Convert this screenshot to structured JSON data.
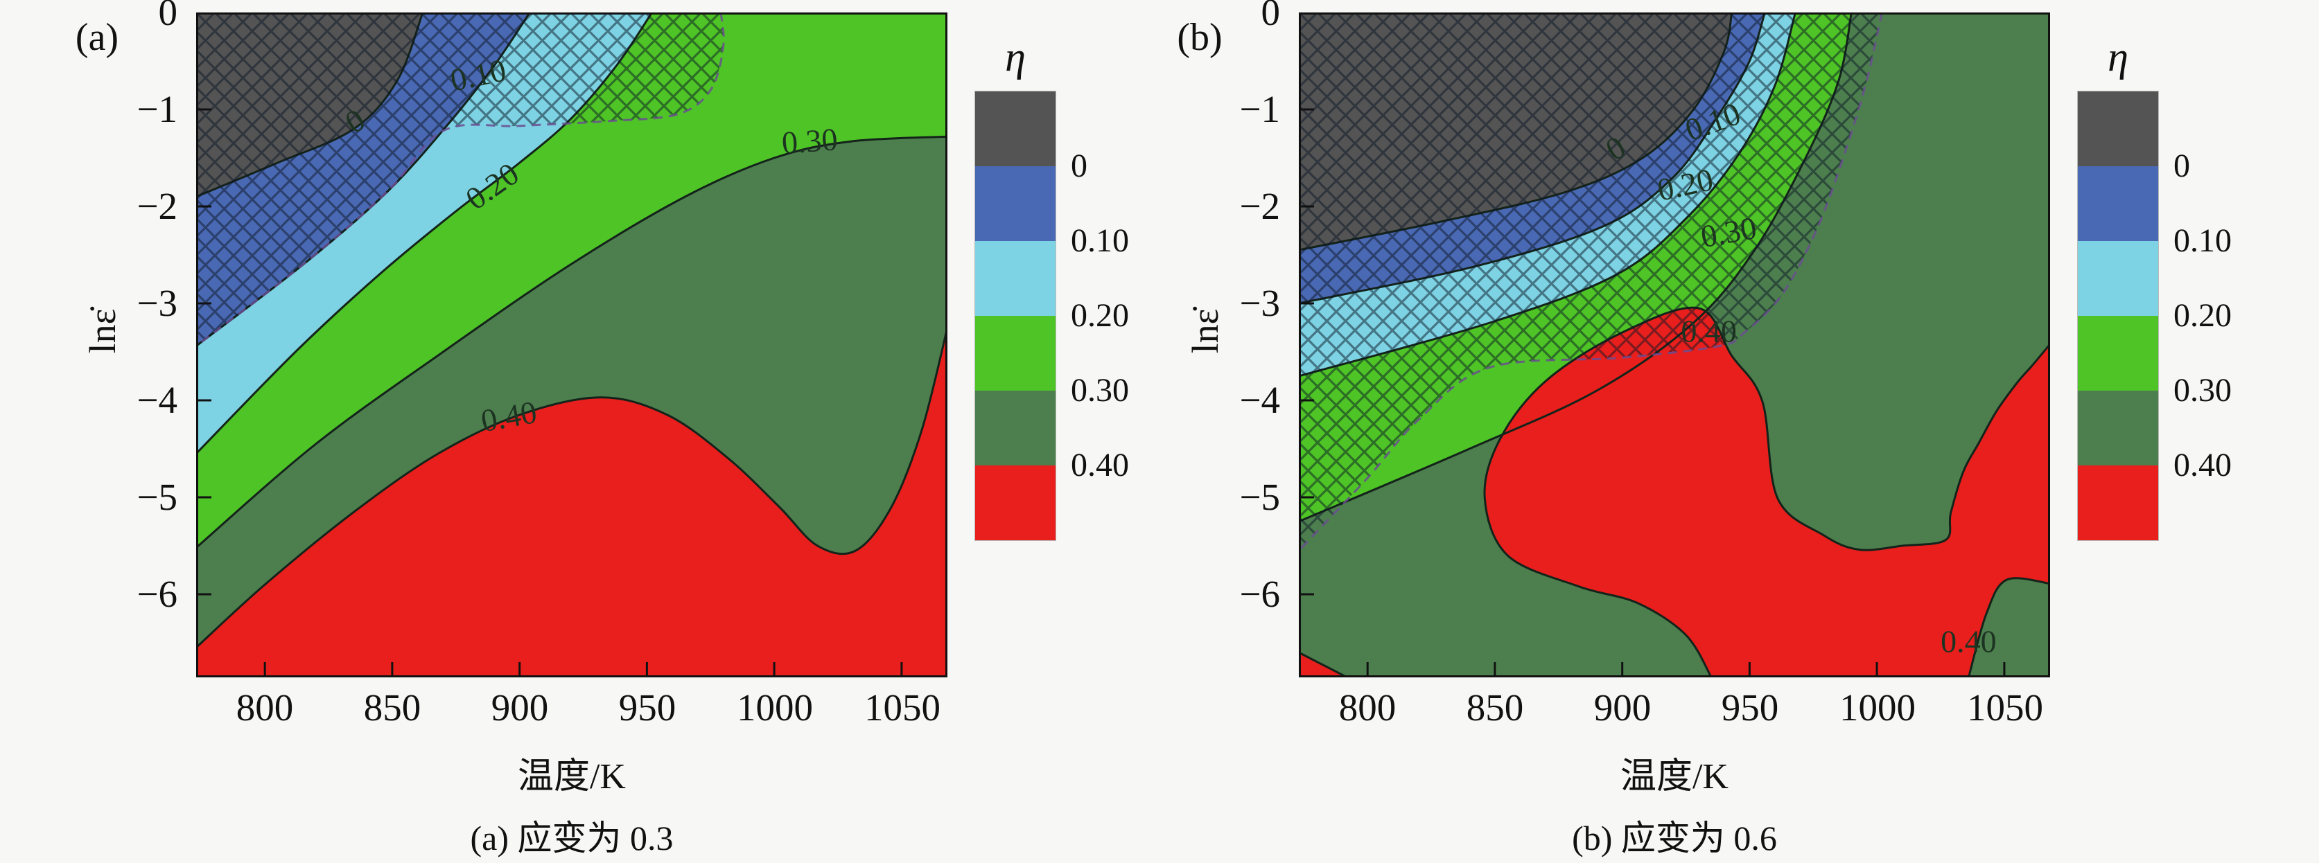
{
  "page": {
    "background": "#f7f7f5"
  },
  "colors": {
    "gray": "#545454",
    "blue": "#4a69b4",
    "cyan": "#7dd2e3",
    "green": "#4ec426",
    "dark_green": "#4d7f4e",
    "red": "#e81f1c",
    "contour_line": "#14231a",
    "hatch_line": "#0c1726",
    "hatch_boundary": "#6b4d92",
    "frame": "#111111"
  },
  "colorbar": {
    "title": "η",
    "tick_labels": [
      "0",
      "0.10",
      "0.20",
      "0.30",
      "0.40"
    ],
    "band_colors": [
      "#545454",
      "#4a69b4",
      "#7dd2e3",
      "#4ec426",
      "#4d7f4e",
      "#e81f1c"
    ]
  },
  "panels": [
    {
      "label": "(a)",
      "caption": "(a) 应变为 0.3",
      "xlabel": "温度/K",
      "ylabel": "lnε̇",
      "xtick_labels": [
        "800",
        "850",
        "900",
        "950",
        "1000",
        "1050"
      ],
      "ytick_labels": [
        "0",
        "−1",
        "−2",
        "−3",
        "−4",
        "−5",
        "−6"
      ]
    },
    {
      "label": "(b)",
      "caption": "(b) 应变为 0.6",
      "xlabel": "温度/K",
      "ylabel": "lnε̇",
      "xtick_labels": [
        "800",
        "850",
        "900",
        "950",
        "1000",
        "1050"
      ],
      "ytick_labels": [
        "0",
        "−1",
        "−2",
        "−3",
        "−4",
        "−5",
        "−6"
      ]
    }
  ],
  "chart_data": [
    {
      "type": "contour",
      "panel": "a",
      "caption": "(a) 应变为 0.3",
      "xlabel": "温度/K",
      "ylabel": "lnε̇",
      "x_range": [
        773,
        1068
      ],
      "y_range": [
        0,
        -6.857
      ],
      "x_ticks": [
        800,
        850,
        900,
        950,
        1000,
        1050
      ],
      "y_ticks": [
        0,
        -1,
        -2,
        -3,
        -4,
        -5,
        -6
      ],
      "levels": [
        0,
        0.1,
        0.2,
        0.3,
        0.4
      ],
      "eta_bands": {
        "<0": "gray",
        "0-0.10": "blue",
        "0.10-0.20": "cyan",
        "0.20-0.30": "green",
        "0.30-0.40": "dark_green",
        ">0.40": "red"
      },
      "bands": [
        {
          "color": "green",
          "line": [
            [
              773,
              -5.52
            ],
            [
              820,
              -4.45
            ],
            [
              870,
              -3.5
            ],
            [
              920,
              -2.6
            ],
            [
              965,
              -1.9
            ],
            [
              1000,
              -1.5
            ],
            [
              1030,
              -1.33
            ],
            [
              1068,
              -1.28
            ]
          ],
          "close": [
            [
              1068,
              0
            ],
            [
              773,
              0
            ]
          ]
        },
        {
          "color": "cyan",
          "line": [
            [
              773,
              -4.55
            ],
            [
              812,
              -3.5
            ],
            [
              845,
              -2.7
            ],
            [
              875,
              -2.05
            ],
            [
              900,
              -1.55
            ],
            [
              920,
              -1.1
            ],
            [
              938,
              -0.55
            ],
            [
              952,
              0
            ]
          ],
          "close": [
            [
              773,
              0
            ]
          ]
        },
        {
          "color": "blue",
          "line": [
            [
              773,
              -3.44
            ],
            [
              815,
              -2.6
            ],
            [
              848,
              -1.85
            ],
            [
              872,
              -1.15
            ],
            [
              890,
              -0.55
            ],
            [
              904,
              0
            ]
          ],
          "close": [
            [
              773,
              0
            ]
          ]
        },
        {
          "color": "gray",
          "line": [
            [
              773,
              -1.9
            ],
            [
              805,
              -1.55
            ],
            [
              835,
              -1.2
            ],
            [
              852,
              -0.7
            ],
            [
              862,
              0
            ]
          ],
          "close": [
            [
              773,
              0
            ]
          ]
        }
      ],
      "red_regions": [
        {
          "line": [
            [
              773,
              -6.55
            ],
            [
              800,
              -5.9
            ],
            [
              835,
              -5.15
            ],
            [
              868,
              -4.55
            ],
            [
              900,
              -4.15
            ],
            [
              932,
              -3.97
            ],
            [
              958,
              -4.15
            ],
            [
              982,
              -4.6
            ],
            [
              1002,
              -5.1
            ],
            [
              1017,
              -5.5
            ],
            [
              1032,
              -5.55
            ],
            [
              1046,
              -5.1
            ],
            [
              1058,
              -4.3
            ],
            [
              1068,
              -3.25
            ]
          ],
          "close": [
            [
              1068,
              -6.857
            ],
            [
              773,
              -6.857
            ]
          ]
        }
      ],
      "hatch": {
        "line": [
          [
            979,
            0
          ],
          [
            980,
            -0.35
          ],
          [
            975,
            -0.8
          ],
          [
            962,
            -1.05
          ],
          [
            935,
            -1.12
          ],
          [
            900,
            -1.17
          ],
          [
            870,
            -1.22
          ],
          [
            848,
            -1.85
          ],
          [
            815,
            -2.6
          ],
          [
            773,
            -3.44
          ]
        ],
        "close": [
          [
            773,
            0
          ]
        ]
      },
      "contour_labels": [
        {
          "text": "0",
          "T": 836,
          "L": -1.15,
          "rot": -30
        },
        {
          "text": "0.10",
          "T": 884,
          "L": -0.68,
          "rot": -12
        },
        {
          "text": "0.20",
          "T": 890,
          "L": -1.82,
          "rot": -35
        },
        {
          "text": "0.30",
          "T": 1014,
          "L": -1.36,
          "rot": -4
        },
        {
          "text": "0.40",
          "T": 896,
          "L": -4.2,
          "rot": -10
        }
      ]
    },
    {
      "type": "contour",
      "panel": "b",
      "caption": "(b) 应变为 0.6",
      "xlabel": "温度/K",
      "ylabel": "lnε̇",
      "x_range": [
        773,
        1068
      ],
      "y_range": [
        0,
        -6.857
      ],
      "x_ticks": [
        800,
        850,
        900,
        950,
        1000,
        1050
      ],
      "y_ticks": [
        0,
        -1,
        -2,
        -3,
        -4,
        -5,
        -6
      ],
      "levels": [
        0,
        0.1,
        0.2,
        0.3,
        0.4
      ],
      "eta_bands": {
        "<0": "gray",
        "0-0.10": "blue",
        "0.10-0.20": "cyan",
        "0.20-0.30": "green",
        "0.30-0.40": "dark_green",
        ">0.40": "red"
      },
      "bands": [
        {
          "color": "green",
          "line": [
            [
              773,
              -5.25
            ],
            [
              840,
              -4.5
            ],
            [
              890,
              -3.9
            ],
            [
              928,
              -3.2
            ],
            [
              952,
              -2.45
            ],
            [
              972,
              -1.5
            ],
            [
              985,
              -0.7
            ],
            [
              990,
              0
            ]
          ],
          "close": [
            [
              773,
              0
            ]
          ]
        },
        {
          "color": "cyan",
          "line": [
            [
              773,
              -3.75
            ],
            [
              848,
              -3.2
            ],
            [
              898,
              -2.7
            ],
            [
              926,
              -2.1
            ],
            [
              946,
              -1.45
            ],
            [
              960,
              -0.75
            ],
            [
              968,
              0
            ]
          ],
          "close": [
            [
              773,
              0
            ]
          ]
        },
        {
          "color": "blue",
          "line": [
            [
              773,
              -3.0
            ],
            [
              842,
              -2.62
            ],
            [
              893,
              -2.2
            ],
            [
              920,
              -1.7
            ],
            [
              938,
              -1.05
            ],
            [
              950,
              -0.5
            ],
            [
              956,
              0
            ]
          ],
          "close": [
            [
              773,
              0
            ]
          ]
        },
        {
          "color": "gray",
          "line": [
            [
              773,
              -2.45
            ],
            [
              830,
              -2.15
            ],
            [
              878,
              -1.85
            ],
            [
              908,
              -1.5
            ],
            [
              928,
              -1.0
            ],
            [
              940,
              -0.4
            ],
            [
              943,
              0
            ]
          ],
          "close": [
            [
              773,
              0
            ]
          ]
        }
      ],
      "red_regions": [
        {
          "line": [
            [
              935,
              -6.857
            ],
            [
              925,
              -6.42
            ],
            [
              906,
              -6.09
            ],
            [
              883,
              -5.92
            ],
            [
              855,
              -5.6
            ],
            [
              846,
              -5.0
            ],
            [
              852,
              -4.4
            ],
            [
              870,
              -3.8
            ],
            [
              900,
              -3.3
            ],
            [
              930,
              -3.05
            ],
            [
              943,
              -3.54
            ],
            [
              955,
              -4.01
            ],
            [
              961,
              -5.01
            ],
            [
              979,
              -5.39
            ],
            [
              993,
              -5.54
            ],
            [
              1010,
              -5.5
            ],
            [
              1027,
              -5.44
            ],
            [
              1029,
              -5.16
            ],
            [
              1034,
              -4.73
            ],
            [
              1040,
              -4.44
            ],
            [
              1047,
              -4.11
            ],
            [
              1055,
              -3.82
            ],
            [
              1061,
              -3.64
            ],
            [
              1068,
              -3.42
            ]
          ],
          "close": [
            [
              1068,
              -6.857
            ]
          ]
        },
        {
          "line": [
            [
              773,
              -6.6
            ],
            [
              792,
              -6.857
            ]
          ],
          "close": [
            [
              773,
              -6.857
            ]
          ]
        }
      ],
      "green_pockets": [
        {
          "line": [
            [
              1036,
              -6.857
            ],
            [
              1043,
              -6.2
            ],
            [
              1051,
              -5.85
            ],
            [
              1068,
              -5.89
            ]
          ],
          "close": [
            [
              1068,
              -6.857
            ]
          ]
        }
      ],
      "hatch": {
        "line": [
          [
            1002,
            0
          ],
          [
            996,
            -0.7
          ],
          [
            988,
            -1.4
          ],
          [
            977,
            -2.2
          ],
          [
            963,
            -2.9
          ],
          [
            948,
            -3.3
          ],
          [
            938,
            -3.44
          ],
          [
            900,
            -3.56
          ],
          [
            848,
            -3.66
          ],
          [
            820,
            -4.2
          ],
          [
            800,
            -4.8
          ],
          [
            773,
            -5.55
          ]
        ],
        "close": [
          [
            773,
            0
          ]
        ]
      },
      "contour_labels": [
        {
          "text": "0",
          "T": 898,
          "L": -1.43,
          "rot": -30
        },
        {
          "text": "0.10",
          "T": 936,
          "L": -1.16,
          "rot": -20
        },
        {
          "text": "0.20",
          "T": 925,
          "L": -1.81,
          "rot": -12
        },
        {
          "text": "0.30",
          "T": 942,
          "L": -2.3,
          "rot": -10
        },
        {
          "text": "0.40",
          "T": 934,
          "L": -3.32,
          "rot": 0
        },
        {
          "text": "0.40",
          "T": 1036,
          "L": -6.52,
          "rot": 0
        }
      ]
    }
  ]
}
